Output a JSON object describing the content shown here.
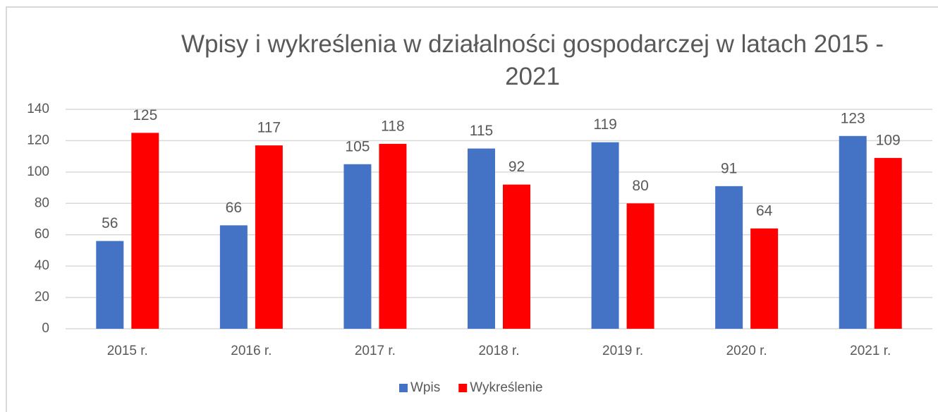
{
  "chart_data": {
    "type": "bar",
    "title": "Wpisy i wykreślenia w działalności gospodarczej w latach 2015 - 2021",
    "categories": [
      "2015 r.",
      "2016 r.",
      "2017 r.",
      "2018 r.",
      "2019 r.",
      "2020 r.",
      "2021 r."
    ],
    "series": [
      {
        "name": "Wpis",
        "color": "#4472c4",
        "values": [
          56,
          66,
          105,
          115,
          119,
          91,
          123
        ]
      },
      {
        "name": "Wykreślenie",
        "color": "#ff0000",
        "values": [
          125,
          117,
          118,
          92,
          80,
          64,
          109
        ]
      }
    ],
    "ylim": [
      0,
      140
    ],
    "yticks": [
      0,
      20,
      40,
      60,
      80,
      100,
      120,
      140
    ],
    "grid": true,
    "legend": "bottom"
  }
}
